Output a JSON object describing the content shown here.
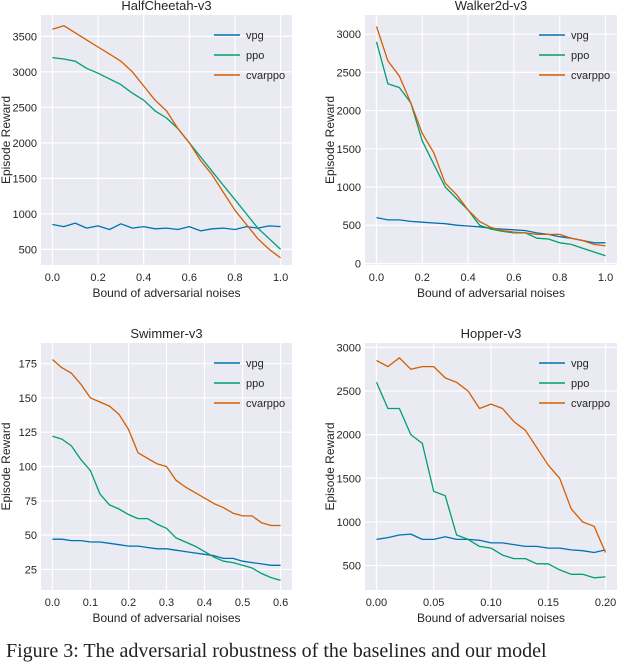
{
  "colors": {
    "vpg": "#0072b2",
    "ppo": "#009e73",
    "cvarppo": "#d55e00",
    "background": "#eaeaf2",
    "grid": "#ffffff"
  },
  "caption": "Figure 3: The adversarial robustness of the baselines and our model",
  "chart_data": [
    {
      "type": "line",
      "title": "HalfCheetah-v3",
      "xlabel": "Bound of adversarial noises",
      "ylabel": "Episode Reward",
      "xlim": [
        -0.05,
        1.05
      ],
      "ylim": [
        280,
        3800
      ],
      "xticks": [
        0.0,
        0.2,
        0.4,
        0.6,
        0.8,
        1.0
      ],
      "xtick_labels": [
        "0.0",
        "0.2",
        "0.4",
        "0.6",
        "0.8",
        "1.0"
      ],
      "yticks": [
        500,
        1000,
        1500,
        2000,
        2500,
        3000,
        3500
      ],
      "ytick_labels": [
        "500",
        "1000",
        "1500",
        "2000",
        "2500",
        "3000",
        "3500"
      ],
      "legend": "top-right",
      "grid": true,
      "x": [
        0,
        0.05,
        0.1,
        0.15,
        0.2,
        0.25,
        0.3,
        0.35,
        0.4,
        0.45,
        0.5,
        0.55,
        0.6,
        0.65,
        0.7,
        0.75,
        0.8,
        0.85,
        0.9,
        0.95,
        1.0
      ],
      "series": [
        {
          "name": "vpg",
          "values": [
            850,
            820,
            870,
            800,
            830,
            780,
            860,
            800,
            820,
            790,
            800,
            780,
            820,
            760,
            790,
            800,
            780,
            820,
            800,
            830,
            820
          ]
        },
        {
          "name": "ppo",
          "values": [
            3200,
            3180,
            3150,
            3050,
            2980,
            2900,
            2820,
            2700,
            2600,
            2450,
            2350,
            2200,
            2000,
            1800,
            1600,
            1400,
            1200,
            1000,
            800,
            650,
            500
          ]
        },
        {
          "name": "cvarppo",
          "values": [
            3600,
            3650,
            3550,
            3450,
            3350,
            3250,
            3150,
            3000,
            2800,
            2600,
            2450,
            2200,
            2000,
            1750,
            1550,
            1300,
            1050,
            850,
            650,
            500,
            380
          ]
        }
      ]
    },
    {
      "type": "line",
      "title": "Walker2d-v3",
      "xlabel": "Bound of adversarial noises",
      "ylabel": "Episode Reward",
      "xlim": [
        -0.05,
        1.05
      ],
      "ylim": [
        -20,
        3250
      ],
      "xticks": [
        0.0,
        0.2,
        0.4,
        0.6,
        0.8,
        1.0
      ],
      "xtick_labels": [
        "0.0",
        "0.2",
        "0.4",
        "0.6",
        "0.8",
        "1.0"
      ],
      "yticks": [
        0,
        500,
        1000,
        1500,
        2000,
        2500,
        3000
      ],
      "ytick_labels": [
        "0",
        "500",
        "1000",
        "1500",
        "2000",
        "2500",
        "3000"
      ],
      "legend": "top-right",
      "grid": true,
      "x": [
        0,
        0.05,
        0.1,
        0.15,
        0.2,
        0.25,
        0.3,
        0.35,
        0.4,
        0.45,
        0.5,
        0.55,
        0.6,
        0.65,
        0.7,
        0.75,
        0.8,
        0.85,
        0.9,
        0.95,
        1.0
      ],
      "series": [
        {
          "name": "vpg",
          "values": [
            600,
            570,
            570,
            550,
            540,
            530,
            520,
            500,
            490,
            480,
            460,
            450,
            440,
            430,
            400,
            380,
            350,
            330,
            300,
            270,
            270
          ]
        },
        {
          "name": "ppo",
          "values": [
            2900,
            2350,
            2300,
            2100,
            1600,
            1300,
            1000,
            850,
            700,
            500,
            450,
            420,
            400,
            400,
            330,
            320,
            270,
            250,
            200,
            150,
            100
          ]
        },
        {
          "name": "cvarppo",
          "values": [
            3100,
            2650,
            2450,
            2100,
            1700,
            1450,
            1050,
            900,
            700,
            550,
            470,
            430,
            410,
            400,
            380,
            380,
            380,
            330,
            300,
            250,
            230
          ]
        }
      ]
    },
    {
      "type": "line",
      "title": "Swimmer-v3",
      "xlabel": "Bound of adversarial noises",
      "ylabel": "Episode Reward",
      "xlim": [
        -0.03,
        0.63
      ],
      "ylim": [
        10,
        190
      ],
      "xticks": [
        0.0,
        0.1,
        0.2,
        0.3,
        0.4,
        0.5,
        0.6
      ],
      "xtick_labels": [
        "0.0",
        "0.1",
        "0.2",
        "0.3",
        "0.4",
        "0.5",
        "0.6"
      ],
      "yticks": [
        25,
        50,
        75,
        100,
        125,
        150,
        175
      ],
      "ytick_labels": [
        "25",
        "50",
        "75",
        "100",
        "125",
        "150",
        "175"
      ],
      "legend": "top-right",
      "grid": true,
      "x": [
        0,
        0.025,
        0.05,
        0.075,
        0.1,
        0.125,
        0.15,
        0.175,
        0.2,
        0.225,
        0.25,
        0.275,
        0.3,
        0.325,
        0.35,
        0.375,
        0.4,
        0.425,
        0.45,
        0.475,
        0.5,
        0.525,
        0.55,
        0.575,
        0.6
      ],
      "series": [
        {
          "name": "vpg",
          "values": [
            47,
            47,
            46,
            46,
            45,
            45,
            44,
            43,
            42,
            42,
            41,
            40,
            40,
            39,
            38,
            37,
            36,
            35,
            33,
            33,
            31,
            30,
            29,
            28,
            28
          ]
        },
        {
          "name": "ppo",
          "values": [
            122,
            120,
            115,
            105,
            97,
            80,
            72,
            69,
            65,
            62,
            62,
            58,
            55,
            48,
            45,
            42,
            38,
            34,
            31,
            30,
            28,
            26,
            22,
            19,
            17
          ]
        },
        {
          "name": "cvarppo",
          "values": [
            178,
            172,
            168,
            160,
            150,
            147,
            144,
            138,
            127,
            110,
            106,
            102,
            100,
            90,
            85,
            81,
            77,
            73,
            70,
            66,
            64,
            64,
            59,
            57,
            57
          ]
        }
      ]
    },
    {
      "type": "line",
      "title": "Hopper-v3",
      "xlabel": "Bound of adversarial noises",
      "ylabel": "Episode Reward",
      "xlim": [
        -0.01,
        0.21
      ],
      "ylim": [
        220,
        3050
      ],
      "xticks": [
        0.0,
        0.05,
        0.1,
        0.15,
        0.2
      ],
      "xtick_labels": [
        "0.00",
        "0.05",
        "0.10",
        "0.15",
        "0.20"
      ],
      "yticks": [
        500,
        1000,
        1500,
        2000,
        2500,
        3000
      ],
      "ytick_labels": [
        "500",
        "1000",
        "1500",
        "2000",
        "2500",
        "3000"
      ],
      "legend": "top-right",
      "grid": true,
      "x": [
        0,
        0.01,
        0.02,
        0.03,
        0.04,
        0.05,
        0.06,
        0.07,
        0.08,
        0.09,
        0.1,
        0.11,
        0.12,
        0.13,
        0.14,
        0.15,
        0.16,
        0.17,
        0.18,
        0.19,
        0.2
      ],
      "series": [
        {
          "name": "vpg",
          "values": [
            800,
            820,
            850,
            860,
            800,
            800,
            830,
            800,
            800,
            790,
            760,
            760,
            740,
            720,
            720,
            700,
            700,
            680,
            670,
            650,
            680
          ]
        },
        {
          "name": "ppo",
          "values": [
            2600,
            2300,
            2300,
            2000,
            1900,
            1350,
            1300,
            850,
            800,
            720,
            700,
            620,
            580,
            580,
            520,
            520,
            450,
            400,
            400,
            360,
            370
          ]
        },
        {
          "name": "cvarppo",
          "values": [
            2850,
            2780,
            2880,
            2750,
            2780,
            2780,
            2650,
            2600,
            2500,
            2300,
            2350,
            2300,
            2150,
            2050,
            1850,
            1650,
            1500,
            1150,
            1000,
            950,
            650
          ]
        }
      ]
    }
  ]
}
